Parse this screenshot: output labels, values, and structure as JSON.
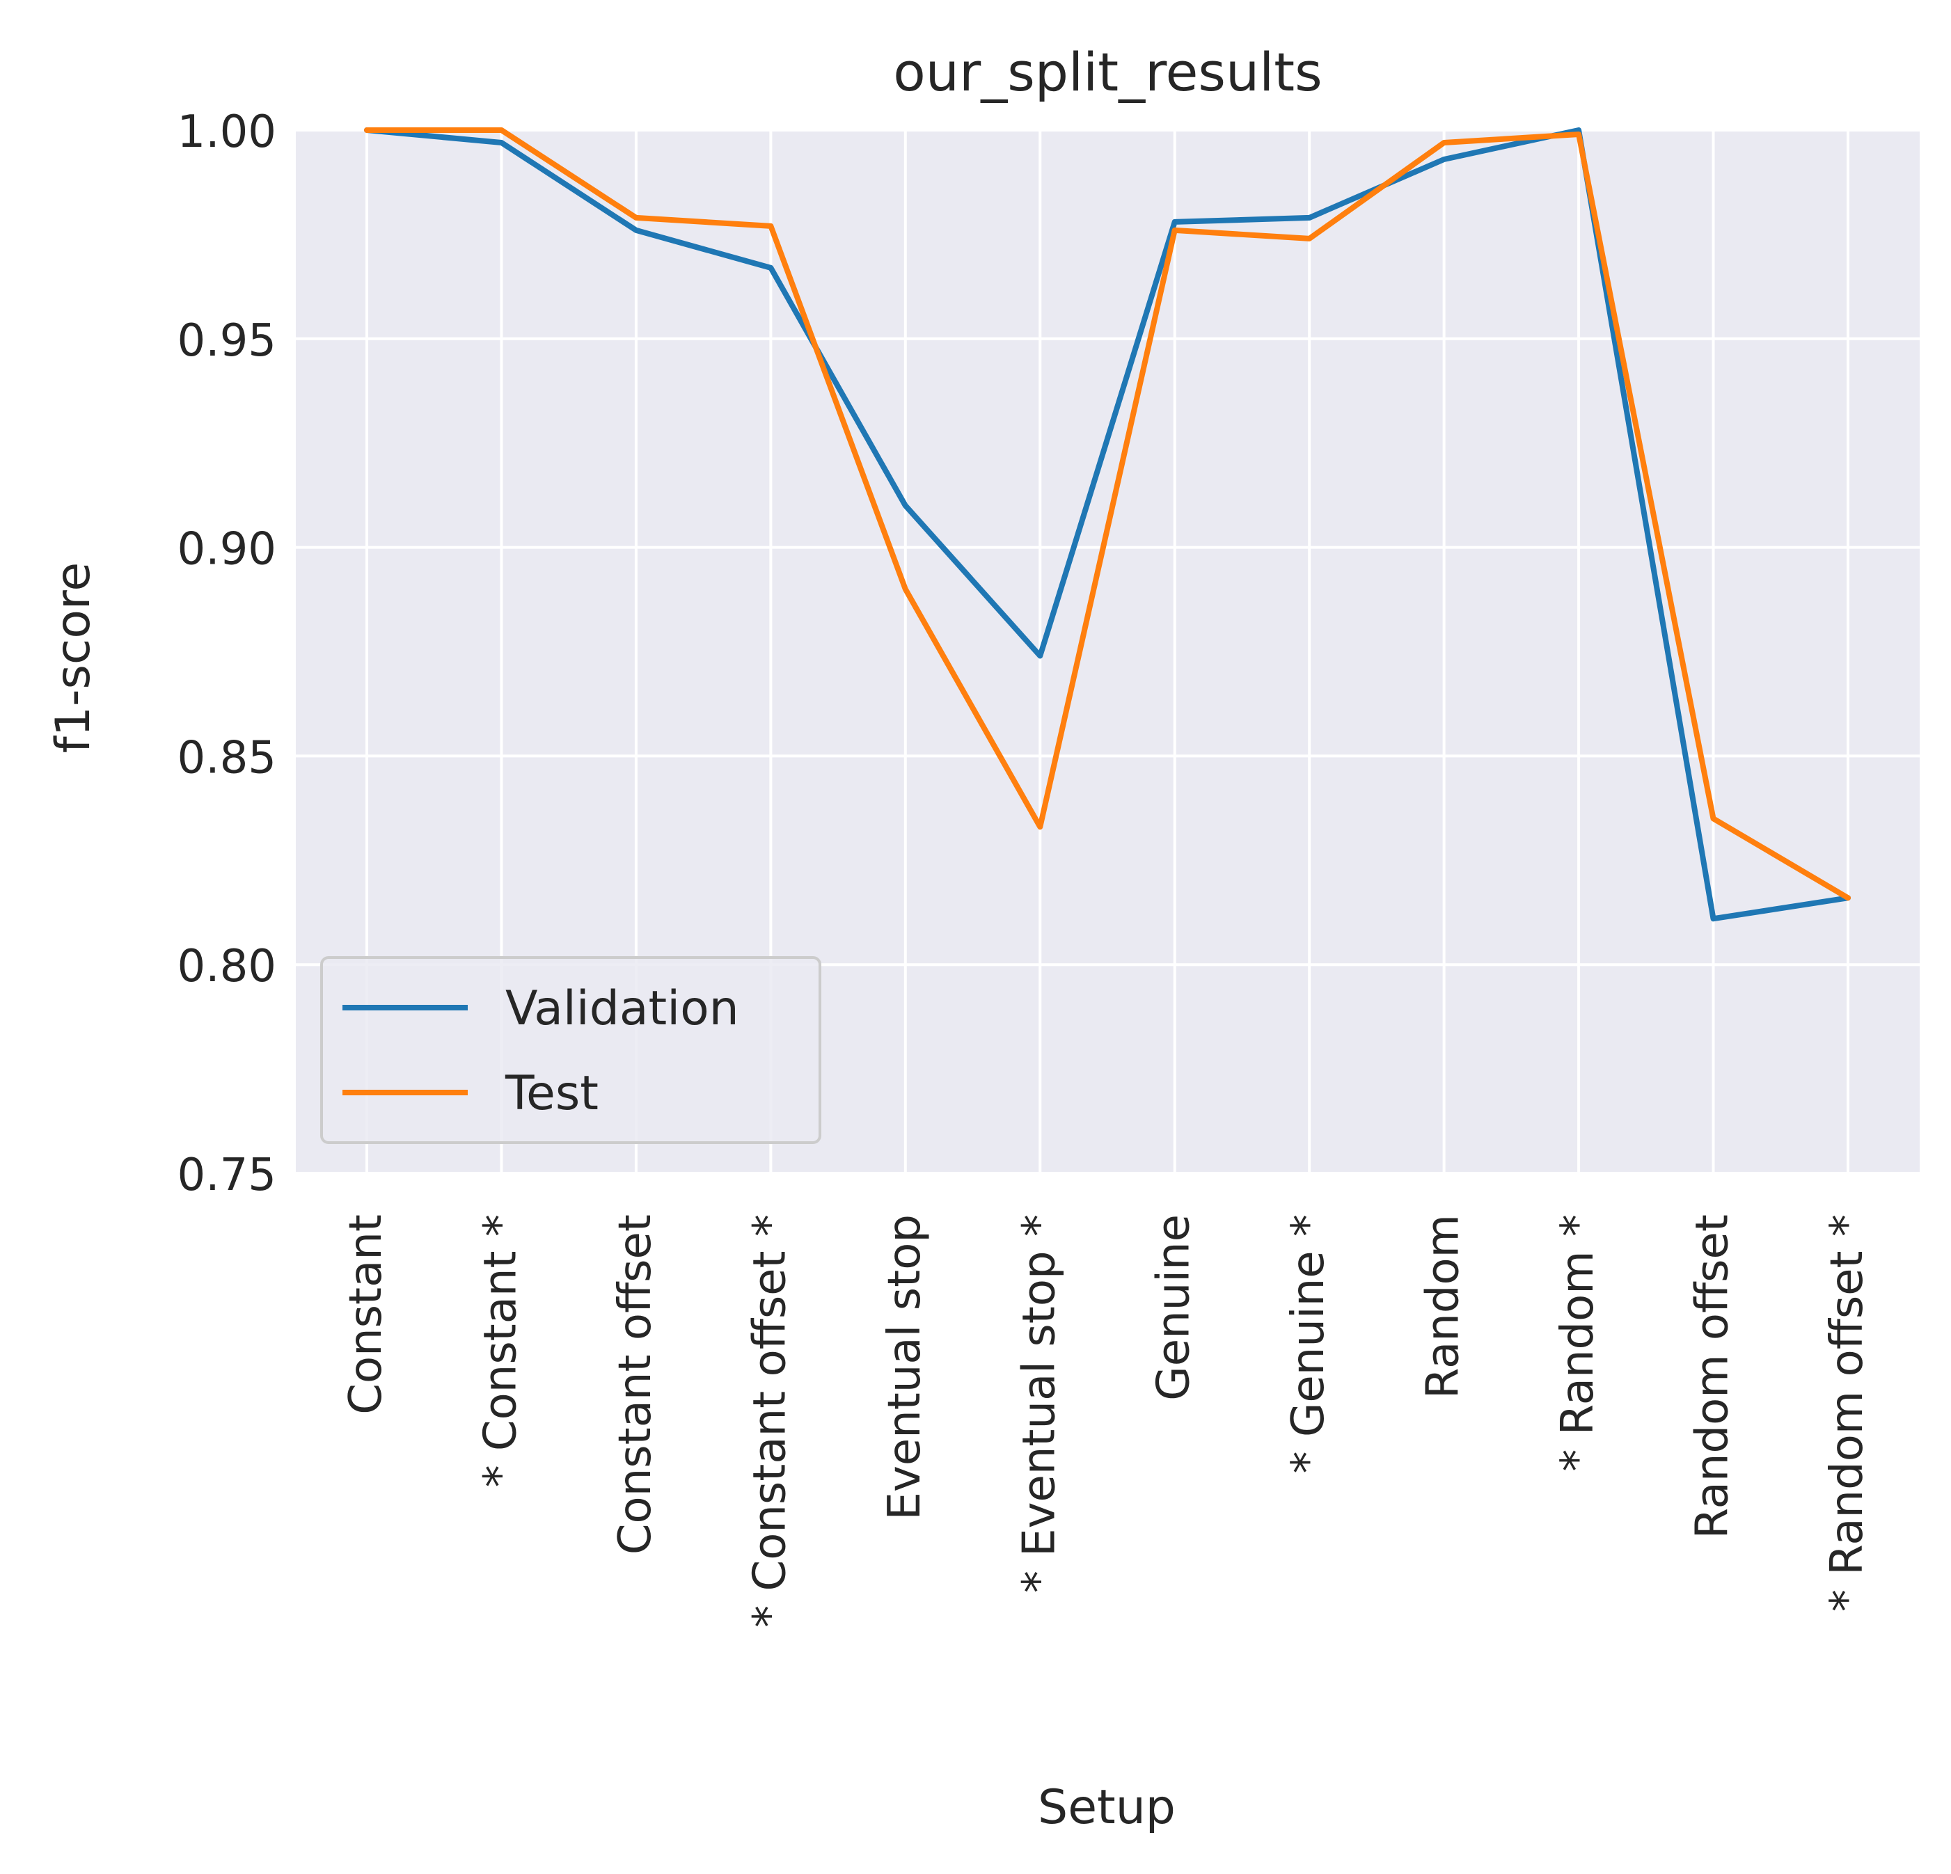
{
  "chart_data": {
    "type": "line",
    "title": "our_split_results",
    "xlabel": "Setup",
    "ylabel": "f1-score",
    "ylim": [
      0.75,
      1.0
    ],
    "yticks": [
      "0.75",
      "0.80",
      "0.85",
      "0.90",
      "0.95",
      "1.00"
    ],
    "categories": [
      "Constant",
      "* Constant *",
      "Constant offset",
      "* Constant offset *",
      "Eventual stop",
      "* Eventual stop *",
      "Genuine",
      "* Genuine *",
      "Random",
      "* Random *",
      "Random offset",
      "* Random offset *"
    ],
    "series": [
      {
        "name": "Validation",
        "color": "#1f77b4",
        "values": [
          1.0,
          0.997,
          0.976,
          0.967,
          0.91,
          0.874,
          0.978,
          0.979,
          0.993,
          1.0,
          0.811,
          0.816
        ]
      },
      {
        "name": "Test",
        "color": "#ff7f0e",
        "values": [
          1.0,
          1.0,
          0.979,
          0.977,
          0.89,
          0.833,
          0.976,
          0.974,
          0.997,
          0.999,
          0.835,
          0.816
        ]
      }
    ],
    "grid": true,
    "legend_position": "lower-left",
    "background": "#eaeaf2"
  }
}
